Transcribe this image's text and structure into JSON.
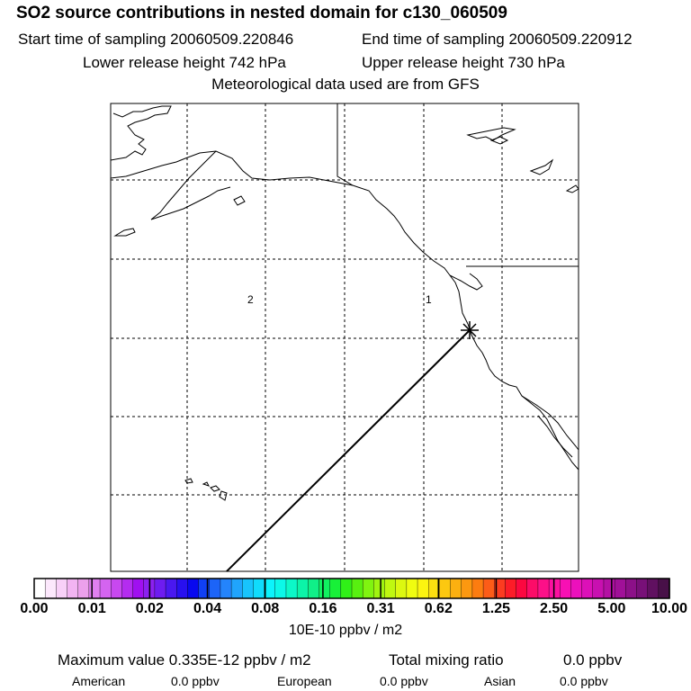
{
  "title": "SO2 source contributions in nested domain for c130_060509",
  "sampling": {
    "start_label": "Start time of sampling 20060509.220846",
    "end_label": "End time of sampling 20060509.220912"
  },
  "release": {
    "lower_label": "Lower release height  742 hPa",
    "upper_label": "Upper release height  730 hPa"
  },
  "met_label": "Meteorological data used are from GFS",
  "map": {
    "region_labels": [
      "2",
      "1"
    ],
    "line_color": "#000000",
    "frame_color": "#000000"
  },
  "colorbar": {
    "tick_labels": [
      "0.00",
      "0.01",
      "0.02",
      "0.04",
      "0.08",
      "0.16",
      "0.31",
      "0.62",
      "1.25",
      "2.50",
      "5.00",
      "10.00"
    ],
    "colors": [
      "#ffffff",
      "#fce8fc",
      "#f8d0f8",
      "#f2b4f2",
      "#eca0ec",
      "#e080f0",
      "#d464f0",
      "#c848f0",
      "#b42cf0",
      "#a010f0",
      "#8c20f0",
      "#6e1cf0",
      "#4a18f0",
      "#2810f0",
      "#0808f0",
      "#1040f4",
      "#1c64f8",
      "#2484fc",
      "#20a4fc",
      "#18c4fc",
      "#10dcfc",
      "#0cf4fc",
      "#0cf8e8",
      "#0cf8c8",
      "#0cf4a8",
      "#10f088",
      "#10f060",
      "#18f038",
      "#30f018",
      "#58f010",
      "#80f410",
      "#a0f410",
      "#c0f810",
      "#dcf810",
      "#f0fc10",
      "#fcf410",
      "#fce010",
      "#fcc810",
      "#fcb010",
      "#fc9810",
      "#fc7c10",
      "#fc5c18",
      "#fc3c20",
      "#fc1c28",
      "#fc0840",
      "#fc0c68",
      "#fc1088",
      "#fc10a0",
      "#f810b4",
      "#ec10bc",
      "#dc10b8",
      "#c810b0",
      "#b410a4",
      "#a01098",
      "#8c1088",
      "#781078",
      "#601060",
      "#481048"
    ]
  },
  "units": "10E-10 ppbv / m2",
  "summary": {
    "max_label": "Maximum value  0.335E-12 ppbv / m2",
    "total_label": "Total mixing ratio",
    "total_value": "0.0 ppbv",
    "american_label": "American",
    "american_value": "0.0 ppbv",
    "european_label": "European",
    "european_value": "0.0 ppbv",
    "asian_label": "Asian",
    "asian_value": "0.0 ppbv"
  }
}
